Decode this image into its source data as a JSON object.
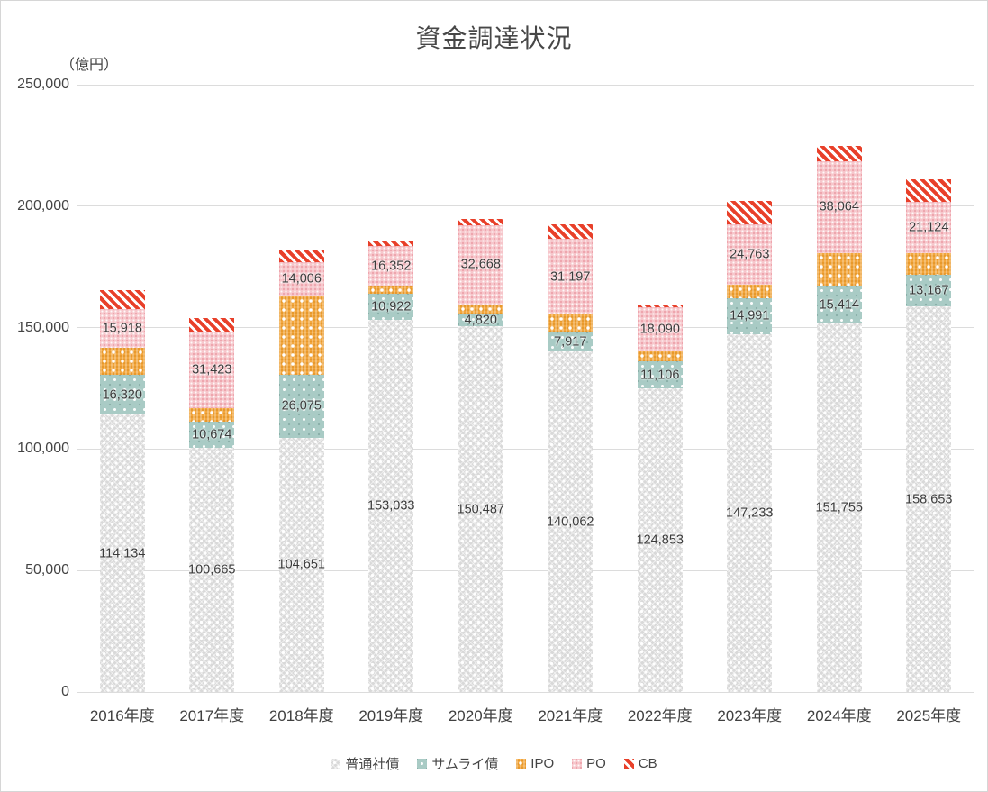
{
  "title": "資金調達状況",
  "y_axis_unit": "（億円）",
  "colors": {
    "bond": "#d9d9d9",
    "samurai": "#a9cbc5",
    "ipo": "#f2a63d",
    "po": "#f6c6cb",
    "cb": "#e8402a",
    "text": "#404040",
    "gridline": "#dcdcdc"
  },
  "chart_data": {
    "type": "bar",
    "stacked": true,
    "title": "資金調達状況",
    "ylabel": "（億円）",
    "xlabel": "",
    "ylim": [
      0,
      250000
    ],
    "yticks": [
      0,
      50000,
      100000,
      150000,
      200000,
      250000
    ],
    "grid": true,
    "legend_position": "bottom",
    "categories": [
      "2016年度",
      "2017年度",
      "2018年度",
      "2019年度",
      "2020年度",
      "2021年度",
      "2022年度",
      "2023年度",
      "2024年度",
      "2025年度"
    ],
    "series": [
      {
        "name": "普通社債",
        "key": "bond",
        "labeled": true,
        "values": [
          114134,
          100665,
          104651,
          153033,
          150487,
          140062,
          124853,
          147233,
          151755,
          158653
        ]
      },
      {
        "name": "サムライ債",
        "key": "samurai",
        "labeled": true,
        "values": [
          16320,
          10674,
          26075,
          10922,
          4820,
          7917,
          11106,
          14991,
          15414,
          13167
        ]
      },
      {
        "name": "IPO",
        "key": "ipo",
        "labeled": false,
        "values": [
          11200,
          5600,
          32200,
          3300,
          4300,
          7300,
          4300,
          5400,
          13400,
          8800
        ]
      },
      {
        "name": "PO",
        "key": "po",
        "labeled": true,
        "values": [
          15918,
          31423,
          14006,
          16352,
          32668,
          31197,
          18090,
          24763,
          38064,
          21124
        ]
      },
      {
        "name": "CB",
        "key": "cb",
        "labeled": false,
        "values": [
          7900,
          5700,
          5300,
          2200,
          2600,
          5900,
          800,
          9600,
          6100,
          9200
        ]
      }
    ]
  }
}
